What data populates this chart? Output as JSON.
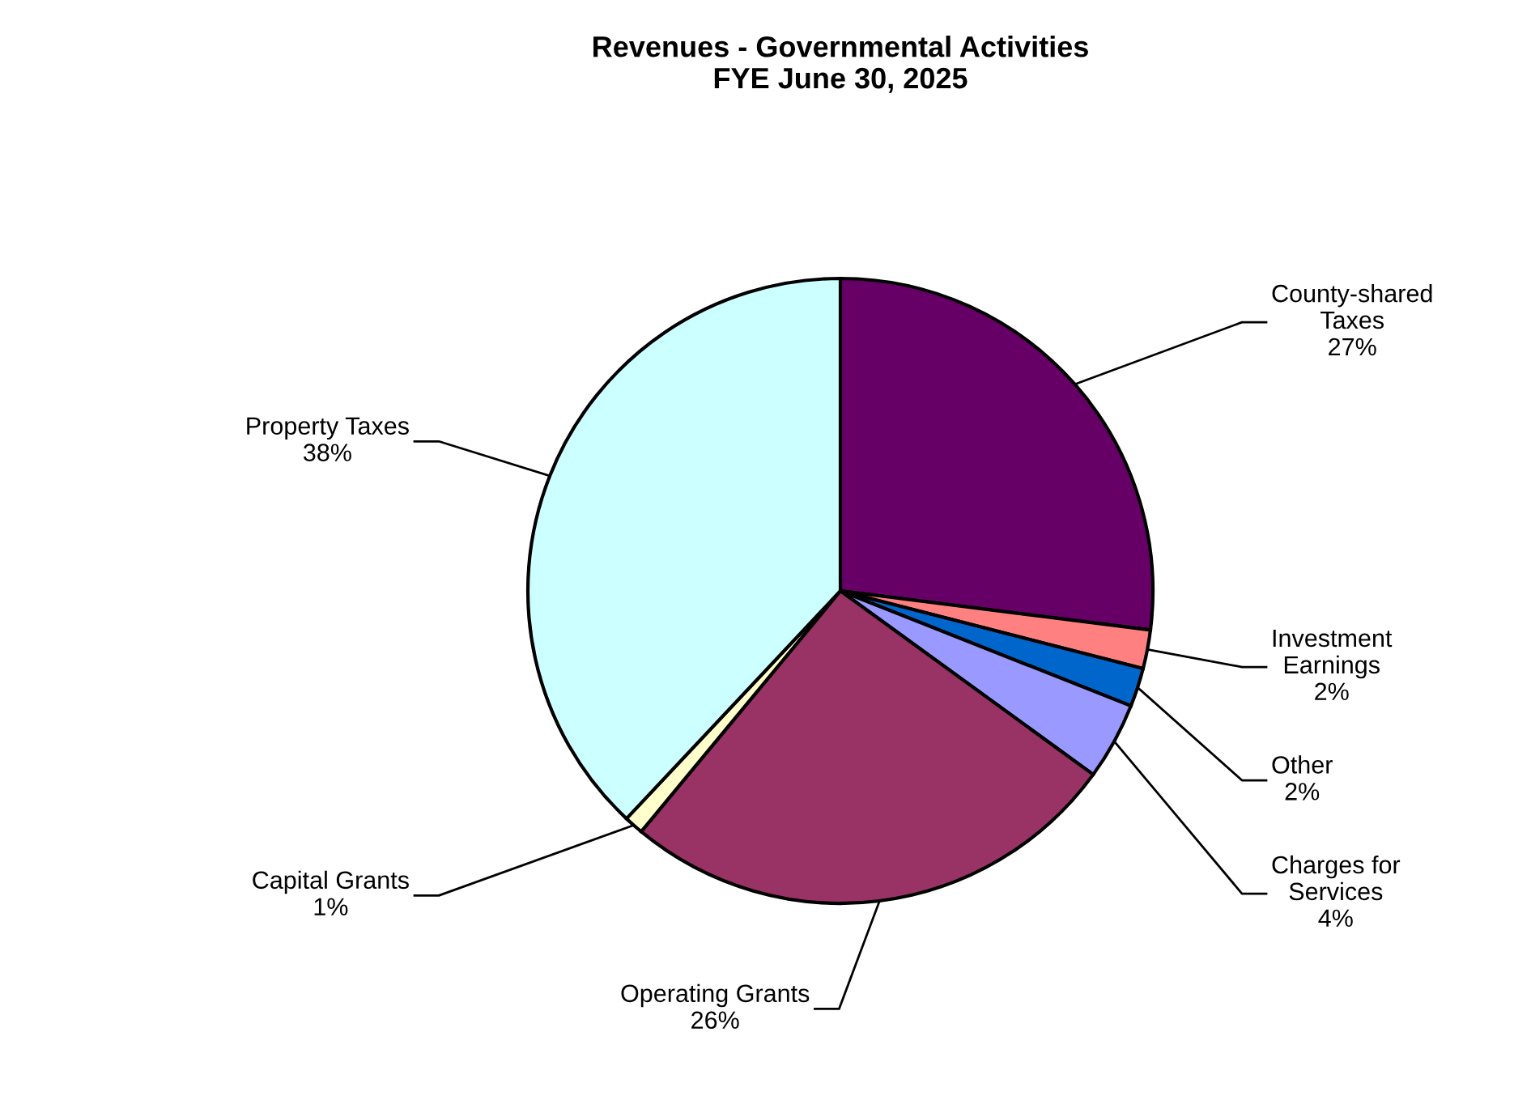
{
  "chart_data": {
    "type": "pie",
    "title": "Revenues - Governmental Activities\nFYE June 30, 2025",
    "categories": [
      "County-shared Taxes",
      "Investment Earnings",
      "Other",
      "Charges for Services",
      "Operating Grants",
      "Capital Grants",
      "Property Taxes"
    ],
    "values": [
      27,
      2,
      2,
      4,
      26,
      1,
      38
    ],
    "value_labels": [
      "27%",
      "2%",
      "2%",
      "4%",
      "26%",
      "1%",
      "38%"
    ],
    "colors": [
      "#660066",
      "#ff8080",
      "#0066cc",
      "#9999ff",
      "#993366",
      "#ffffcc",
      "#ccffff"
    ],
    "legend": false
  }
}
